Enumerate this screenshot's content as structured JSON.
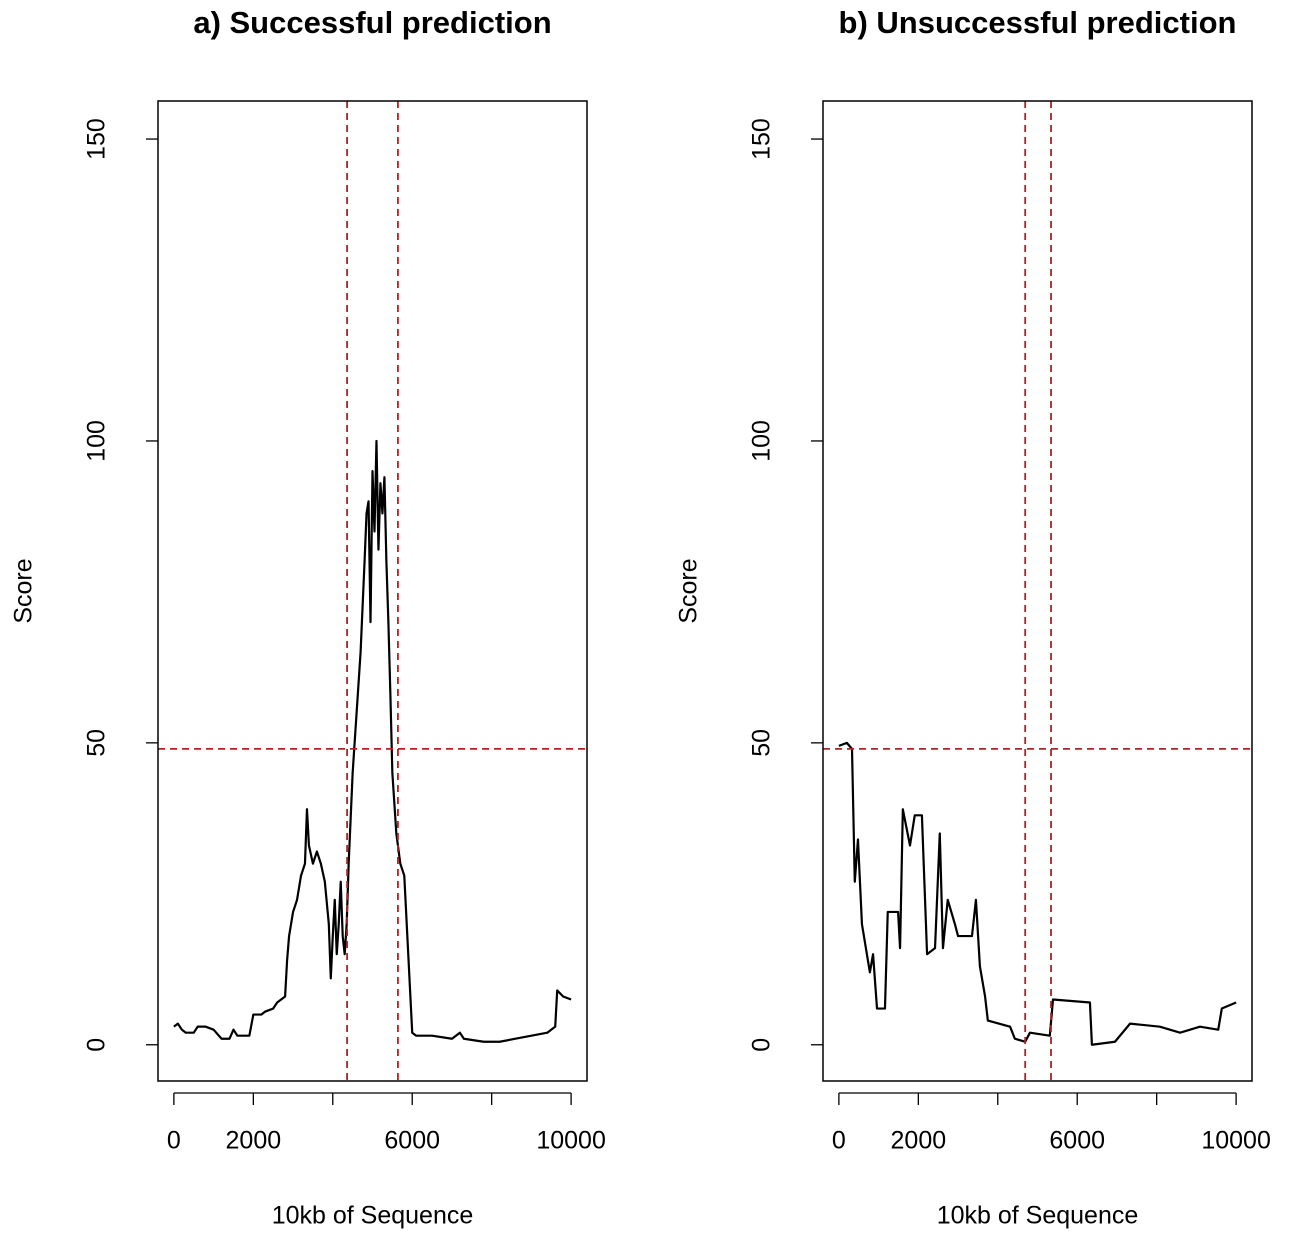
{
  "chart_data": [
    {
      "type": "line",
      "title": "a) Successful prediction",
      "xlabel": "10kb of Sequence",
      "ylabel": "Score",
      "xlim": [
        -400,
        10400
      ],
      "ylim": [
        -6,
        156.3
      ],
      "xticks": [
        0,
        2000,
        {
          "value": 4000,
          "label": null
        },
        6000,
        {
          "value": 8000,
          "label": null
        },
        10000
      ],
      "yticks": [
        0,
        50,
        100,
        150
      ],
      "vlines": [
        4360,
        5640
      ],
      "hline": 49,
      "ref_color": "#b22222",
      "series": [
        {
          "color": "#000000",
          "x": [
            0,
            100,
            200,
            300,
            500,
            600,
            800,
            1000,
            1200,
            1400,
            1500,
            1600,
            1900,
            2000,
            2200,
            2300,
            2500,
            2600,
            2800,
            2850,
            2900,
            3000,
            3100,
            3200,
            3300,
            3350,
            3400,
            3500,
            3600,
            3700,
            3800,
            3900,
            3950,
            4000,
            4050,
            4100,
            4150,
            4200,
            4250,
            4300,
            4350,
            4400,
            4500,
            4600,
            4700,
            4800,
            4850,
            4900,
            4950,
            5000,
            5050,
            5100,
            5150,
            5200,
            5250,
            5300,
            5350,
            5400,
            5450,
            5500,
            5600,
            5700,
            5800,
            5900,
            6000,
            6100,
            6500,
            7000,
            7200,
            7300,
            7800,
            8200,
            8600,
            9000,
            9400,
            9600,
            9650,
            9800,
            10000
          ],
          "values": [
            3,
            3.5,
            2.5,
            2,
            2,
            3,
            3,
            2.5,
            1,
            1,
            2.5,
            1.5,
            1.5,
            5,
            5,
            5.5,
            6,
            7,
            8,
            14,
            18,
            22,
            24,
            28,
            30,
            39,
            33,
            30,
            32,
            30,
            27,
            20,
            11,
            18,
            24,
            15,
            20,
            27,
            18,
            15,
            20,
            30,
            45,
            55,
            65,
            80,
            88,
            90,
            70,
            95,
            85,
            100,
            82,
            93,
            88,
            94,
            80,
            70,
            58,
            45,
            35,
            30,
            28,
            15,
            2,
            1.5,
            1.5,
            1,
            2,
            1,
            0.5,
            0.5,
            1,
            1.5,
            2,
            3,
            9,
            8,
            7.5
          ]
        }
      ]
    },
    {
      "type": "line",
      "title": "b) Unsuccessful prediction",
      "xlabel": "10kb of Sequence",
      "ylabel": "Score",
      "xlim": [
        -400,
        10400
      ],
      "ylim": [
        -6,
        156.3
      ],
      "xticks": [
        0,
        2000,
        {
          "value": 4000,
          "label": null
        },
        6000,
        {
          "value": 8000,
          "label": null
        },
        10000
      ],
      "yticks": [
        0,
        50,
        100,
        150
      ],
      "vlines": [
        4690,
        5340
      ],
      "hline": 49,
      "ref_color": "#b22222",
      "series": [
        {
          "color": "#000000",
          "x": [
            0,
            200,
            330,
            400,
            480,
            580,
            680,
            780,
            860,
            960,
            1160,
            1230,
            1490,
            1540,
            1610,
            1790,
            1910,
            2090,
            2220,
            2420,
            2540,
            2620,
            2740,
            2920,
            3000,
            3350,
            3450,
            3550,
            3680,
            3750,
            4310,
            4430,
            4690,
            4810,
            5310,
            5390,
            6320,
            6370,
            6950,
            7330,
            8080,
            8590,
            9090,
            9550,
            9640,
            10000
          ],
          "values": [
            49.5,
            50,
            49,
            27,
            34,
            20,
            16,
            12,
            15,
            6,
            6,
            22,
            22,
            16,
            39,
            33,
            38,
            38,
            15,
            16,
            35,
            16,
            24,
            20,
            18,
            18,
            24,
            13,
            8,
            4,
            3,
            1,
            0.5,
            2,
            1.5,
            7.5,
            7,
            0,
            0.5,
            3.5,
            3,
            2,
            3,
            2.5,
            6,
            7
          ]
        }
      ]
    }
  ]
}
